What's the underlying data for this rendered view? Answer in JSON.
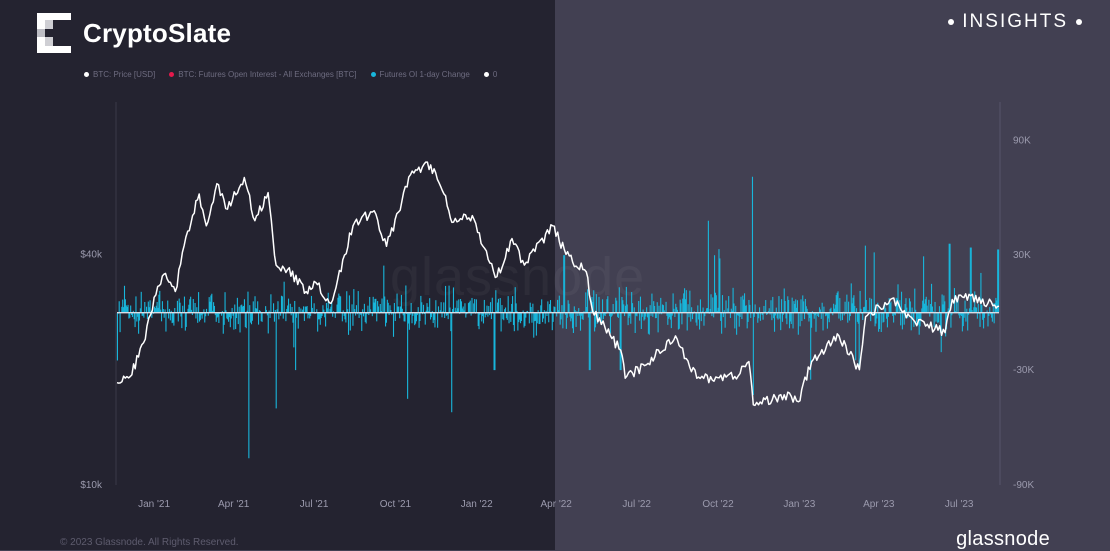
{
  "brand": {
    "name": "CryptoSlate"
  },
  "badge": {
    "text": "INSIGHTS"
  },
  "footer": {
    "copyright": "© 2023 Glassnode. All Rights Reserved.",
    "brand": "glassnode"
  },
  "watermark": "glassnode",
  "colors": {
    "price": "#ffffff",
    "oi_change": "#18b6db",
    "zero": "#d8dde6",
    "open_interest": "#e5194c"
  },
  "chart_data": {
    "type": "line",
    "title": "",
    "legend": [
      {
        "label": "BTC: Price [USD]",
        "color": "#ffffff"
      },
      {
        "label": "BTC: Futures Open Interest - All Exchanges [BTC]",
        "color": "#e5194c"
      },
      {
        "label": "Futures OI 1-day Change",
        "color": "#18b6db"
      },
      {
        "label": "0",
        "color": "#ffffff"
      }
    ],
    "legend_position": "top-left",
    "x_range": [
      "2020-11-20",
      "2023-08-15"
    ],
    "x_ticks": [
      "Jan '21",
      "Apr '21",
      "Jul '21",
      "Oct '21",
      "Jan '22",
      "Apr '22",
      "Jul '22",
      "Oct '22",
      "Jan '23",
      "Apr '23",
      "Jul '23"
    ],
    "left_axis": {
      "scale": "log",
      "range": [
        10000,
        100000
      ],
      "ticks": [
        "$40k",
        "$10k"
      ]
    },
    "right_axis": {
      "range": [
        -90000,
        110000
      ],
      "ticks": [
        "90K",
        "30K",
        "-30K",
        "-90K"
      ]
    },
    "grid": false,
    "series": [
      {
        "name": "BTC: Price [USD]",
        "axis": "left",
        "points": [
          [
            "2020-11-20",
            18500
          ],
          [
            "2020-12-05",
            19200
          ],
          [
            "2020-12-20",
            23500
          ],
          [
            "2021-01-05",
            33000
          ],
          [
            "2021-01-12",
            35500
          ],
          [
            "2021-01-25",
            32000
          ],
          [
            "2021-02-08",
            46000
          ],
          [
            "2021-02-21",
            57500
          ],
          [
            "2021-03-01",
            47500
          ],
          [
            "2021-03-13",
            61200
          ],
          [
            "2021-03-25",
            52500
          ],
          [
            "2021-04-13",
            63500
          ],
          [
            "2021-04-25",
            49000
          ],
          [
            "2021-05-10",
            58000
          ],
          [
            "2021-05-19",
            37500
          ],
          [
            "2021-06-01",
            36500
          ],
          [
            "2021-06-22",
            32000
          ],
          [
            "2021-07-01",
            34000
          ],
          [
            "2021-07-20",
            29800
          ],
          [
            "2021-08-14",
            47500
          ],
          [
            "2021-09-07",
            52000
          ],
          [
            "2021-09-21",
            42000
          ],
          [
            "2021-10-20",
            66000
          ],
          [
            "2021-11-10",
            68500
          ],
          [
            "2021-11-25",
            57500
          ],
          [
            "2021-12-04",
            48500
          ],
          [
            "2021-12-27",
            50500
          ],
          [
            "2022-01-10",
            41500
          ],
          [
            "2022-01-24",
            35000
          ],
          [
            "2022-02-10",
            44000
          ],
          [
            "2022-02-24",
            37500
          ],
          [
            "2022-03-28",
            47500
          ],
          [
            "2022-04-12",
            40000
          ],
          [
            "2022-05-05",
            36000
          ],
          [
            "2022-05-12",
            28500
          ],
          [
            "2022-06-13",
            22500
          ],
          [
            "2022-06-18",
            19000
          ],
          [
            "2022-07-10",
            20500
          ],
          [
            "2022-08-14",
            24500
          ],
          [
            "2022-09-07",
            19000
          ],
          [
            "2022-10-20",
            19200
          ],
          [
            "2022-11-05",
            21000
          ],
          [
            "2022-11-10",
            16200
          ],
          [
            "2022-12-15",
            17200
          ],
          [
            "2022-12-31",
            16500
          ],
          [
            "2023-01-15",
            21000
          ],
          [
            "2023-02-15",
            24500
          ],
          [
            "2023-03-10",
            20000
          ],
          [
            "2023-03-17",
            27500
          ],
          [
            "2023-04-14",
            30500
          ],
          [
            "2023-05-10",
            27000
          ],
          [
            "2023-06-15",
            25000
          ],
          [
            "2023-06-23",
            30500
          ],
          [
            "2023-07-14",
            31200
          ],
          [
            "2023-08-10",
            29500
          ],
          [
            "2023-08-15",
            29300
          ]
        ]
      },
      {
        "name": "Futures OI 1-day Change",
        "axis": "right",
        "type": "bar",
        "count": 1000,
        "typical_range": [
          -10000,
          12000
        ],
        "spikes": [
          [
            "2021-04-18",
            -76000
          ],
          [
            "2021-05-19",
            -50000
          ],
          [
            "2021-06-10",
            -30000
          ],
          [
            "2021-10-15",
            -45000
          ],
          [
            "2021-12-04",
            -52000
          ],
          [
            "2022-01-21",
            -30000
          ],
          [
            "2022-04-10",
            30000
          ],
          [
            "2022-05-09",
            -30000
          ],
          [
            "2022-06-13",
            -30000
          ],
          [
            "2022-09-20",
            48000
          ],
          [
            "2022-11-09",
            71000
          ],
          [
            "2022-11-10",
            -43000
          ],
          [
            "2023-01-14",
            -35000
          ],
          [
            "2023-03-10",
            -28000
          ],
          [
            "2023-03-17",
            35000
          ],
          [
            "2023-06-20",
            36000
          ],
          [
            "2023-07-14",
            34000
          ],
          [
            "2023-08-14",
            33000
          ]
        ]
      },
      {
        "name": "0",
        "axis": "right",
        "type": "hline",
        "value": 0
      }
    ]
  }
}
